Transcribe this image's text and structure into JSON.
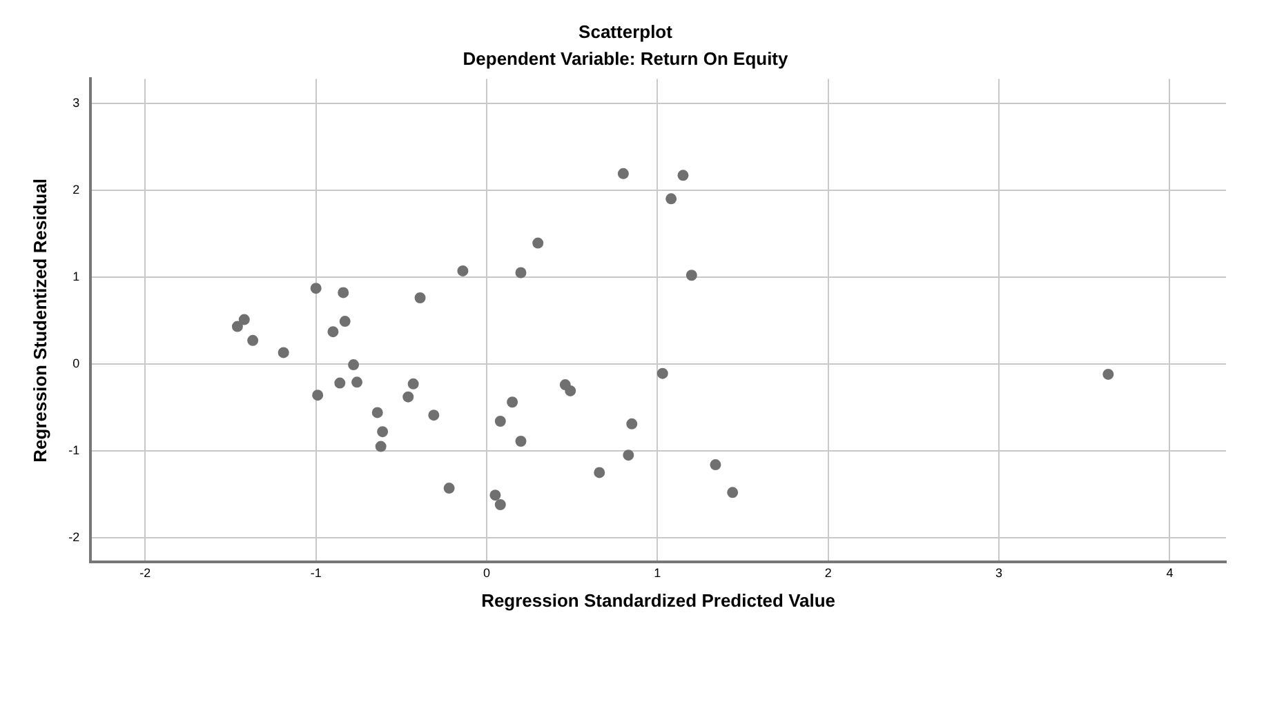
{
  "chart_data": {
    "type": "scatter",
    "title": "Scatterplot",
    "subtitle": "Dependent Variable: Return On Equity",
    "xlabel": "Regression Standardized Predicted Value",
    "ylabel": "Regression Studentized Residual",
    "x": [
      -1.46,
      -1.42,
      -1.37,
      -1.19,
      -1.0,
      -0.99,
      -0.9,
      -0.84,
      -0.83,
      -0.86,
      -0.78,
      -0.76,
      -0.64,
      -0.61,
      -0.62,
      -0.46,
      -0.43,
      -0.39,
      -0.31,
      -0.22,
      -0.14,
      0.05,
      0.08,
      0.08,
      0.15,
      0.2,
      0.2,
      0.3,
      0.8,
      1.15,
      1.08,
      1.2,
      1.03,
      0.46,
      0.49,
      0.85,
      0.83,
      0.66,
      1.34,
      1.44,
      3.64
    ],
    "values": [
      0.43,
      0.51,
      0.27,
      0.13,
      0.87,
      -0.36,
      0.37,
      0.82,
      0.49,
      -0.22,
      -0.01,
      -0.21,
      -0.56,
      -0.78,
      -0.95,
      -0.38,
      -0.23,
      0.76,
      -0.59,
      -1.43,
      1.07,
      -1.51,
      -1.62,
      -0.66,
      -0.44,
      1.05,
      -0.89,
      1.39,
      2.19,
      2.17,
      1.9,
      1.02,
      -0.11,
      -0.24,
      -0.31,
      -0.69,
      -1.05,
      -1.25,
      -1.16,
      -1.48,
      -0.12
    ],
    "color": "#707070",
    "marker": "circle",
    "xlim": [
      -2.32,
      4.33
    ],
    "xticks": [
      -2,
      -1,
      0,
      1,
      2,
      3,
      4
    ],
    "ylim": [
      -2.28,
      3.28
    ],
    "yticks": [
      -2,
      -1,
      0,
      1,
      2,
      3
    ],
    "grid": true,
    "legend": false
  }
}
